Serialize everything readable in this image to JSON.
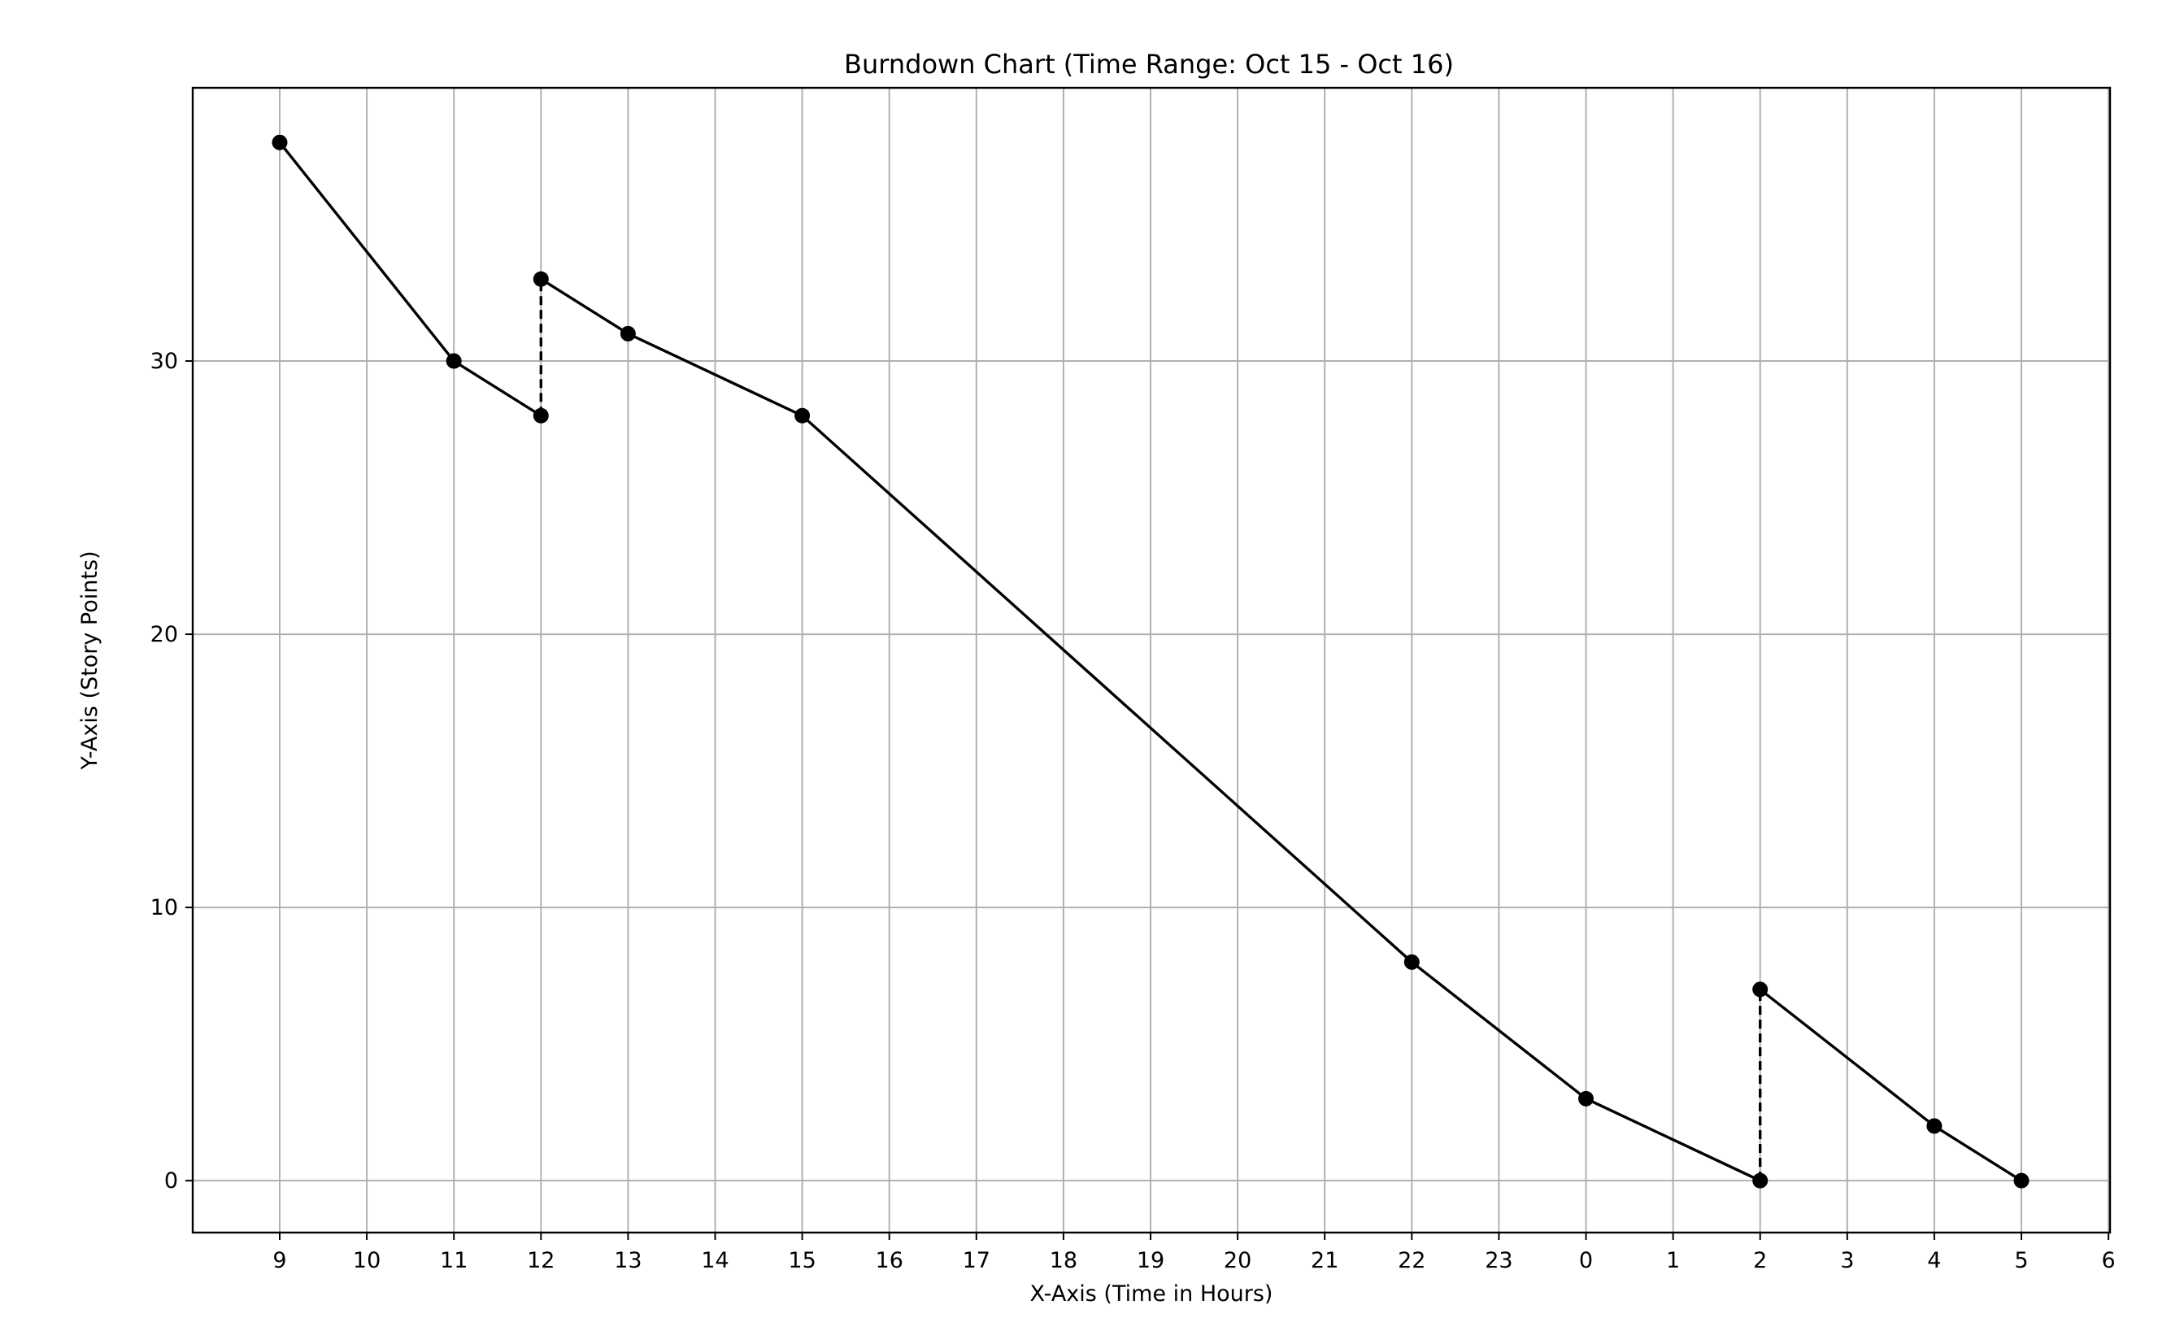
{
  "chart_data": {
    "type": "line",
    "title": "Burndown Chart (Time Range: Oct 15 - Oct 16)",
    "xlabel": "X-Axis (Time in Hours)",
    "ylabel": "Y-Axis (Story Points)",
    "x_ticks": [
      "9",
      "10",
      "11",
      "12",
      "13",
      "14",
      "15",
      "16",
      "17",
      "18",
      "19",
      "20",
      "21",
      "22",
      "23",
      "0",
      "1",
      "2",
      "3",
      "4",
      "5",
      "6"
    ],
    "y_ticks": [
      0,
      10,
      20,
      30
    ],
    "ylim": [
      -1.9,
      40
    ],
    "grid": true,
    "series": [
      {
        "x": [
          "9",
          "11",
          "12",
          "12",
          "13",
          "15",
          "22",
          "0",
          "2",
          "2",
          "4",
          "5"
        ],
        "y": [
          38,
          30,
          28,
          33,
          31,
          28,
          8,
          3,
          0,
          7,
          2,
          0
        ],
        "segment_styles": [
          "solid",
          "solid",
          "dashed",
          "solid",
          "solid",
          "solid",
          "solid",
          "solid",
          "dashed",
          "solid",
          "solid"
        ],
        "color": "#000000",
        "marker": "circle"
      }
    ]
  }
}
